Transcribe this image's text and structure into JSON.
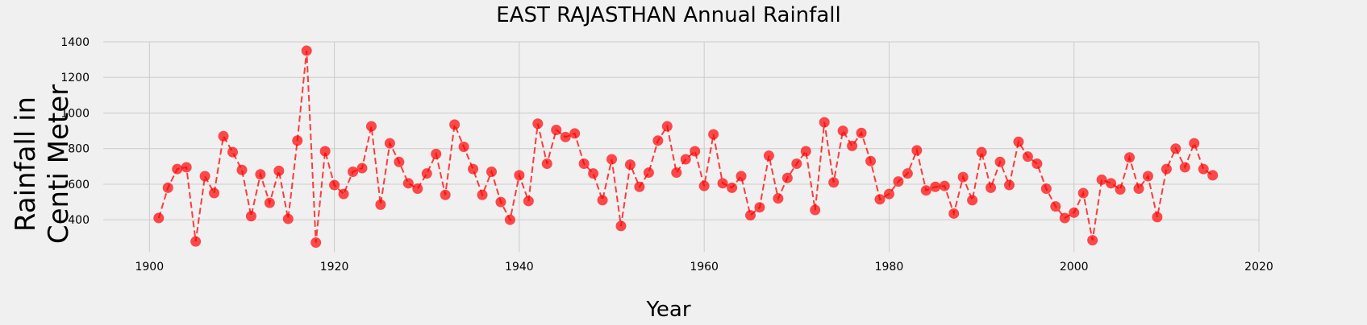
{
  "chart_data": {
    "type": "line",
    "title": "EAST RAJASTHAN Annual Rainfall",
    "xlabel": "Year",
    "ylabel_lines": [
      "Rainfall in",
      "Centi Meter"
    ],
    "xlim": [
      1895,
      2020
    ],
    "ylim": [
      220,
      1400
    ],
    "xticks": [
      1900,
      1920,
      1940,
      1960,
      1980,
      2000,
      2020
    ],
    "yticks": [
      400,
      600,
      800,
      1000,
      1200,
      1400
    ],
    "grid": true,
    "line_style": "dashed",
    "colors": {
      "series": "#ff0000",
      "background": "#f0f0f0",
      "grid": "#cbcbcb"
    },
    "x": [
      1901,
      1902,
      1903,
      1904,
      1905,
      1906,
      1907,
      1908,
      1909,
      1910,
      1911,
      1912,
      1913,
      1914,
      1915,
      1916,
      1917,
      1918,
      1919,
      1920,
      1921,
      1922,
      1923,
      1924,
      1925,
      1926,
      1927,
      1928,
      1929,
      1930,
      1931,
      1932,
      1933,
      1934,
      1935,
      1936,
      1937,
      1938,
      1939,
      1940,
      1941,
      1942,
      1943,
      1944,
      1945,
      1946,
      1947,
      1948,
      1949,
      1950,
      1951,
      1952,
      1953,
      1954,
      1955,
      1956,
      1957,
      1958,
      1959,
      1960,
      1961,
      1962,
      1963,
      1964,
      1965,
      1966,
      1967,
      1968,
      1969,
      1970,
      1971,
      1972,
      1973,
      1974,
      1975,
      1976,
      1977,
      1978,
      1979,
      1980,
      1981,
      1982,
      1983,
      1984,
      1985,
      1986,
      1987,
      1988,
      1989,
      1990,
      1991,
      1992,
      1993,
      1994,
      1995,
      1996,
      1997,
      1998,
      1999,
      2000,
      2001,
      2002,
      2003,
      2004,
      2005,
      2006,
      2007,
      2008,
      2009,
      2010,
      2011,
      2012,
      2013,
      2014,
      2015
    ],
    "y": [
      410,
      580,
      685,
      695,
      278,
      645,
      550,
      870,
      780,
      680,
      420,
      655,
      495,
      675,
      405,
      845,
      1350,
      272,
      785,
      595,
      545,
      670,
      690,
      925,
      485,
      830,
      725,
      605,
      575,
      660,
      770,
      540,
      935,
      810,
      685,
      540,
      670,
      500,
      400,
      650,
      505,
      940,
      715,
      905,
      865,
      885,
      715,
      660,
      510,
      740,
      365,
      710,
      585,
      665,
      845,
      925,
      665,
      740,
      785,
      590,
      880,
      605,
      580,
      645,
      425,
      470,
      760,
      520,
      635,
      715,
      785,
      455,
      948,
      610,
      900,
      815,
      888,
      730,
      515,
      545,
      615,
      660,
      790,
      565,
      585,
      590,
      435,
      640,
      510,
      780,
      580,
      725,
      595,
      838,
      755,
      715,
      575,
      475,
      410,
      440,
      550,
      285,
      625,
      605,
      570,
      750,
      575,
      645,
      415,
      685,
      800,
      695,
      830,
      685,
      650
    ]
  }
}
